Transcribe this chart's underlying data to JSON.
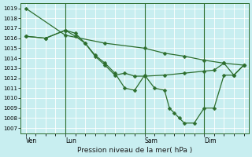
{
  "background_color": "#c8eef0",
  "grid_color": "#ffffff",
  "line_color": "#2d6e2d",
  "title": "Pression niveau de la mer( hPa )",
  "ylim": [
    1006.5,
    1019.5
  ],
  "yticks": [
    1007,
    1008,
    1009,
    1010,
    1011,
    1012,
    1013,
    1014,
    1015,
    1016,
    1017,
    1018,
    1019
  ],
  "xlim": [
    -0.5,
    22.5
  ],
  "xtick_labels": [
    "Ven",
    "Lun",
    "Sam",
    "Dim"
  ],
  "xtick_positions": [
    0,
    4,
    12,
    18
  ],
  "series": [
    {
      "x": [
        0,
        4,
        8,
        12,
        14,
        16,
        18,
        20,
        22
      ],
      "y": [
        1019.0,
        1016.3,
        1015.5,
        1015.0,
        1014.5,
        1014.2,
        1013.8,
        1013.5,
        1013.3
      ]
    },
    {
      "x": [
        0,
        2,
        4,
        5,
        6,
        7,
        8,
        9,
        10,
        11,
        12,
        14,
        16,
        18,
        19,
        20,
        21,
        22
      ],
      "y": [
        1016.2,
        1016.0,
        1016.8,
        1016.5,
        1015.5,
        1014.2,
        1013.3,
        1012.3,
        1012.5,
        1012.2,
        1012.2,
        1012.3,
        1012.5,
        1012.7,
        1012.8,
        1013.5,
        1012.3,
        1013.3
      ]
    },
    {
      "x": [
        0,
        2,
        4,
        5,
        6,
        7,
        8,
        9,
        10,
        11,
        12,
        13,
        14,
        14.5,
        15,
        15.5,
        16,
        17,
        18,
        19,
        20,
        21,
        22
      ],
      "y": [
        1016.2,
        1016.0,
        1016.8,
        1016.2,
        1015.5,
        1014.3,
        1013.5,
        1012.5,
        1011.0,
        1010.8,
        1012.3,
        1011.0,
        1010.8,
        1009.0,
        1008.5,
        1008.0,
        1007.5,
        1007.5,
        1009.0,
        1009.0,
        1012.3,
        1012.3,
        1013.3
      ]
    }
  ],
  "vlines": [
    4,
    12,
    18
  ],
  "marker": "D",
  "markersize": 2.5,
  "linewidth": 0.9
}
